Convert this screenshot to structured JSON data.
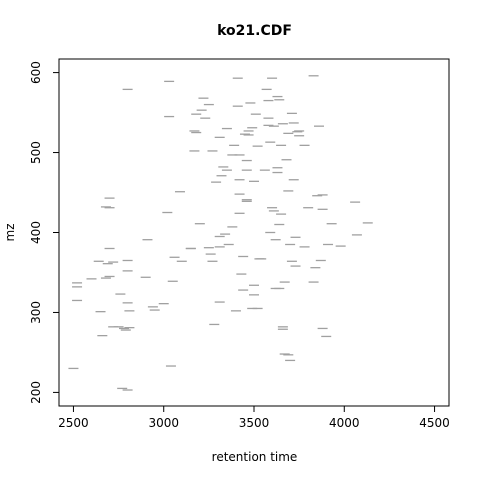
{
  "chart_data": {
    "type": "scatter",
    "marker": "short-horizontal-dash",
    "title": "ko21.CDF",
    "xlabel": "retention time",
    "ylabel": "mz",
    "xlim": [
      2420,
      4580
    ],
    "ylim": [
      183,
      617
    ],
    "xticks": [
      2500,
      3000,
      3500,
      4000,
      4500
    ],
    "yticks": [
      200,
      300,
      400,
      500,
      600
    ],
    "grid": false,
    "point_color": "#a0a0a0",
    "points": [
      [
        2500,
        230
      ],
      [
        2520,
        315
      ],
      [
        2520,
        332
      ],
      [
        2520,
        337
      ],
      [
        2600,
        342
      ],
      [
        2640,
        364
      ],
      [
        2650,
        301
      ],
      [
        2660,
        271
      ],
      [
        2680,
        343
      ],
      [
        2690,
        361
      ],
      [
        2700,
        345
      ],
      [
        2700,
        380
      ],
      [
        2700,
        431
      ],
      [
        2700,
        443
      ],
      [
        2720,
        363
      ],
      [
        2750,
        282
      ],
      [
        2760,
        323
      ],
      [
        2770,
        205
      ],
      [
        2800,
        312
      ],
      [
        2800,
        352
      ],
      [
        2800,
        365
      ],
      [
        2800,
        579
      ],
      [
        2800,
        203
      ],
      [
        2810,
        302
      ],
      [
        2810,
        281
      ],
      [
        2790,
        278
      ],
      [
        2900,
        344
      ],
      [
        2910,
        391
      ],
      [
        2940,
        307
      ],
      [
        2950,
        303
      ],
      [
        3000,
        311
      ],
      [
        3020,
        425
      ],
      [
        3040,
        233
      ],
      [
        3050,
        339
      ],
      [
        3060,
        369
      ],
      [
        3090,
        451
      ],
      [
        3030,
        545
      ],
      [
        3030,
        589
      ],
      [
        3150,
        380
      ],
      [
        3170,
        502
      ],
      [
        3170,
        527
      ],
      [
        3180,
        548
      ],
      [
        3210,
        553
      ],
      [
        3200,
        411
      ],
      [
        3220,
        568
      ],
      [
        3230,
        543
      ],
      [
        3250,
        381
      ],
      [
        3260,
        373
      ],
      [
        3270,
        364
      ],
      [
        3280,
        285
      ],
      [
        3270,
        502
      ],
      [
        3290,
        463
      ],
      [
        3310,
        519
      ],
      [
        3310,
        395
      ],
      [
        3310,
        382
      ],
      [
        3310,
        313
      ],
      [
        3320,
        471
      ],
      [
        3330,
        482
      ],
      [
        3340,
        398
      ],
      [
        3350,
        530
      ],
      [
        3360,
        385
      ],
      [
        3380,
        407
      ],
      [
        3380,
        497
      ],
      [
        3390,
        509
      ],
      [
        3400,
        302
      ],
      [
        3410,
        593
      ],
      [
        3410,
        558
      ],
      [
        3420,
        497
      ],
      [
        3420,
        466
      ],
      [
        3420,
        448
      ],
      [
        3420,
        424
      ],
      [
        3430,
        348
      ],
      [
        3440,
        328
      ],
      [
        3440,
        370
      ],
      [
        3450,
        523
      ],
      [
        3460,
        490
      ],
      [
        3460,
        478
      ],
      [
        3460,
        439
      ],
      [
        3470,
        522
      ],
      [
        3470,
        527
      ],
      [
        3480,
        562
      ],
      [
        3490,
        305
      ],
      [
        3490,
        531
      ],
      [
        3500,
        334
      ],
      [
        3500,
        322
      ],
      [
        3500,
        464
      ],
      [
        3510,
        548
      ],
      [
        3520,
        508
      ],
      [
        3540,
        367
      ],
      [
        3570,
        579
      ],
      [
        3580,
        534
      ],
      [
        3580,
        565
      ],
      [
        3580,
        543
      ],
      [
        3590,
        513
      ],
      [
        3590,
        400
      ],
      [
        3600,
        593
      ],
      [
        3610,
        427
      ],
      [
        3620,
        391
      ],
      [
        3630,
        475
      ],
      [
        3630,
        481
      ],
      [
        3630,
        570
      ],
      [
        3640,
        566
      ],
      [
        3640,
        330
      ],
      [
        3650,
        423
      ],
      [
        3650,
        509
      ],
      [
        3660,
        282
      ],
      [
        3660,
        536
      ],
      [
        3670,
        248
      ],
      [
        3670,
        338
      ],
      [
        3690,
        524
      ],
      [
        3690,
        452
      ],
      [
        3700,
        385
      ],
      [
        3710,
        549
      ],
      [
        3710,
        364
      ],
      [
        3720,
        537
      ],
      [
        3720,
        466
      ],
      [
        3730,
        358
      ],
      [
        3730,
        394
      ],
      [
        3740,
        526
      ],
      [
        3750,
        521
      ],
      [
        3780,
        509
      ],
      [
        3780,
        382
      ],
      [
        3800,
        431
      ],
      [
        3830,
        596
      ],
      [
        3830,
        338
      ],
      [
        3840,
        356
      ],
      [
        3850,
        446
      ],
      [
        3860,
        533
      ],
      [
        3870,
        365
      ],
      [
        3880,
        280
      ],
      [
        3880,
        429
      ],
      [
        3880,
        447
      ],
      [
        3900,
        270
      ],
      [
        3910,
        385
      ],
      [
        3930,
        411
      ],
      [
        3980,
        383
      ],
      [
        4060,
        438
      ],
      [
        4070,
        397
      ],
      [
        4130,
        412
      ],
      [
        3690,
        247
      ],
      [
        3700,
        240
      ],
      [
        3660,
        279
      ],
      [
        3620,
        330
      ],
      [
        3520,
        305
      ],
      [
        3560,
        478
      ],
      [
        3600,
        431
      ],
      [
        3610,
        533
      ],
      [
        3750,
        527
      ],
      [
        3530,
        367
      ],
      [
        3640,
        410
      ],
      [
        3680,
        491
      ],
      [
        3460,
        441
      ],
      [
        3350,
        478
      ],
      [
        3250,
        560
      ],
      [
        3180,
        525
      ],
      [
        3150,
        380
      ],
      [
        3100,
        364
      ],
      [
        2680,
        432
      ],
      [
        2720,
        282
      ],
      [
        2780,
        280
      ]
    ]
  }
}
